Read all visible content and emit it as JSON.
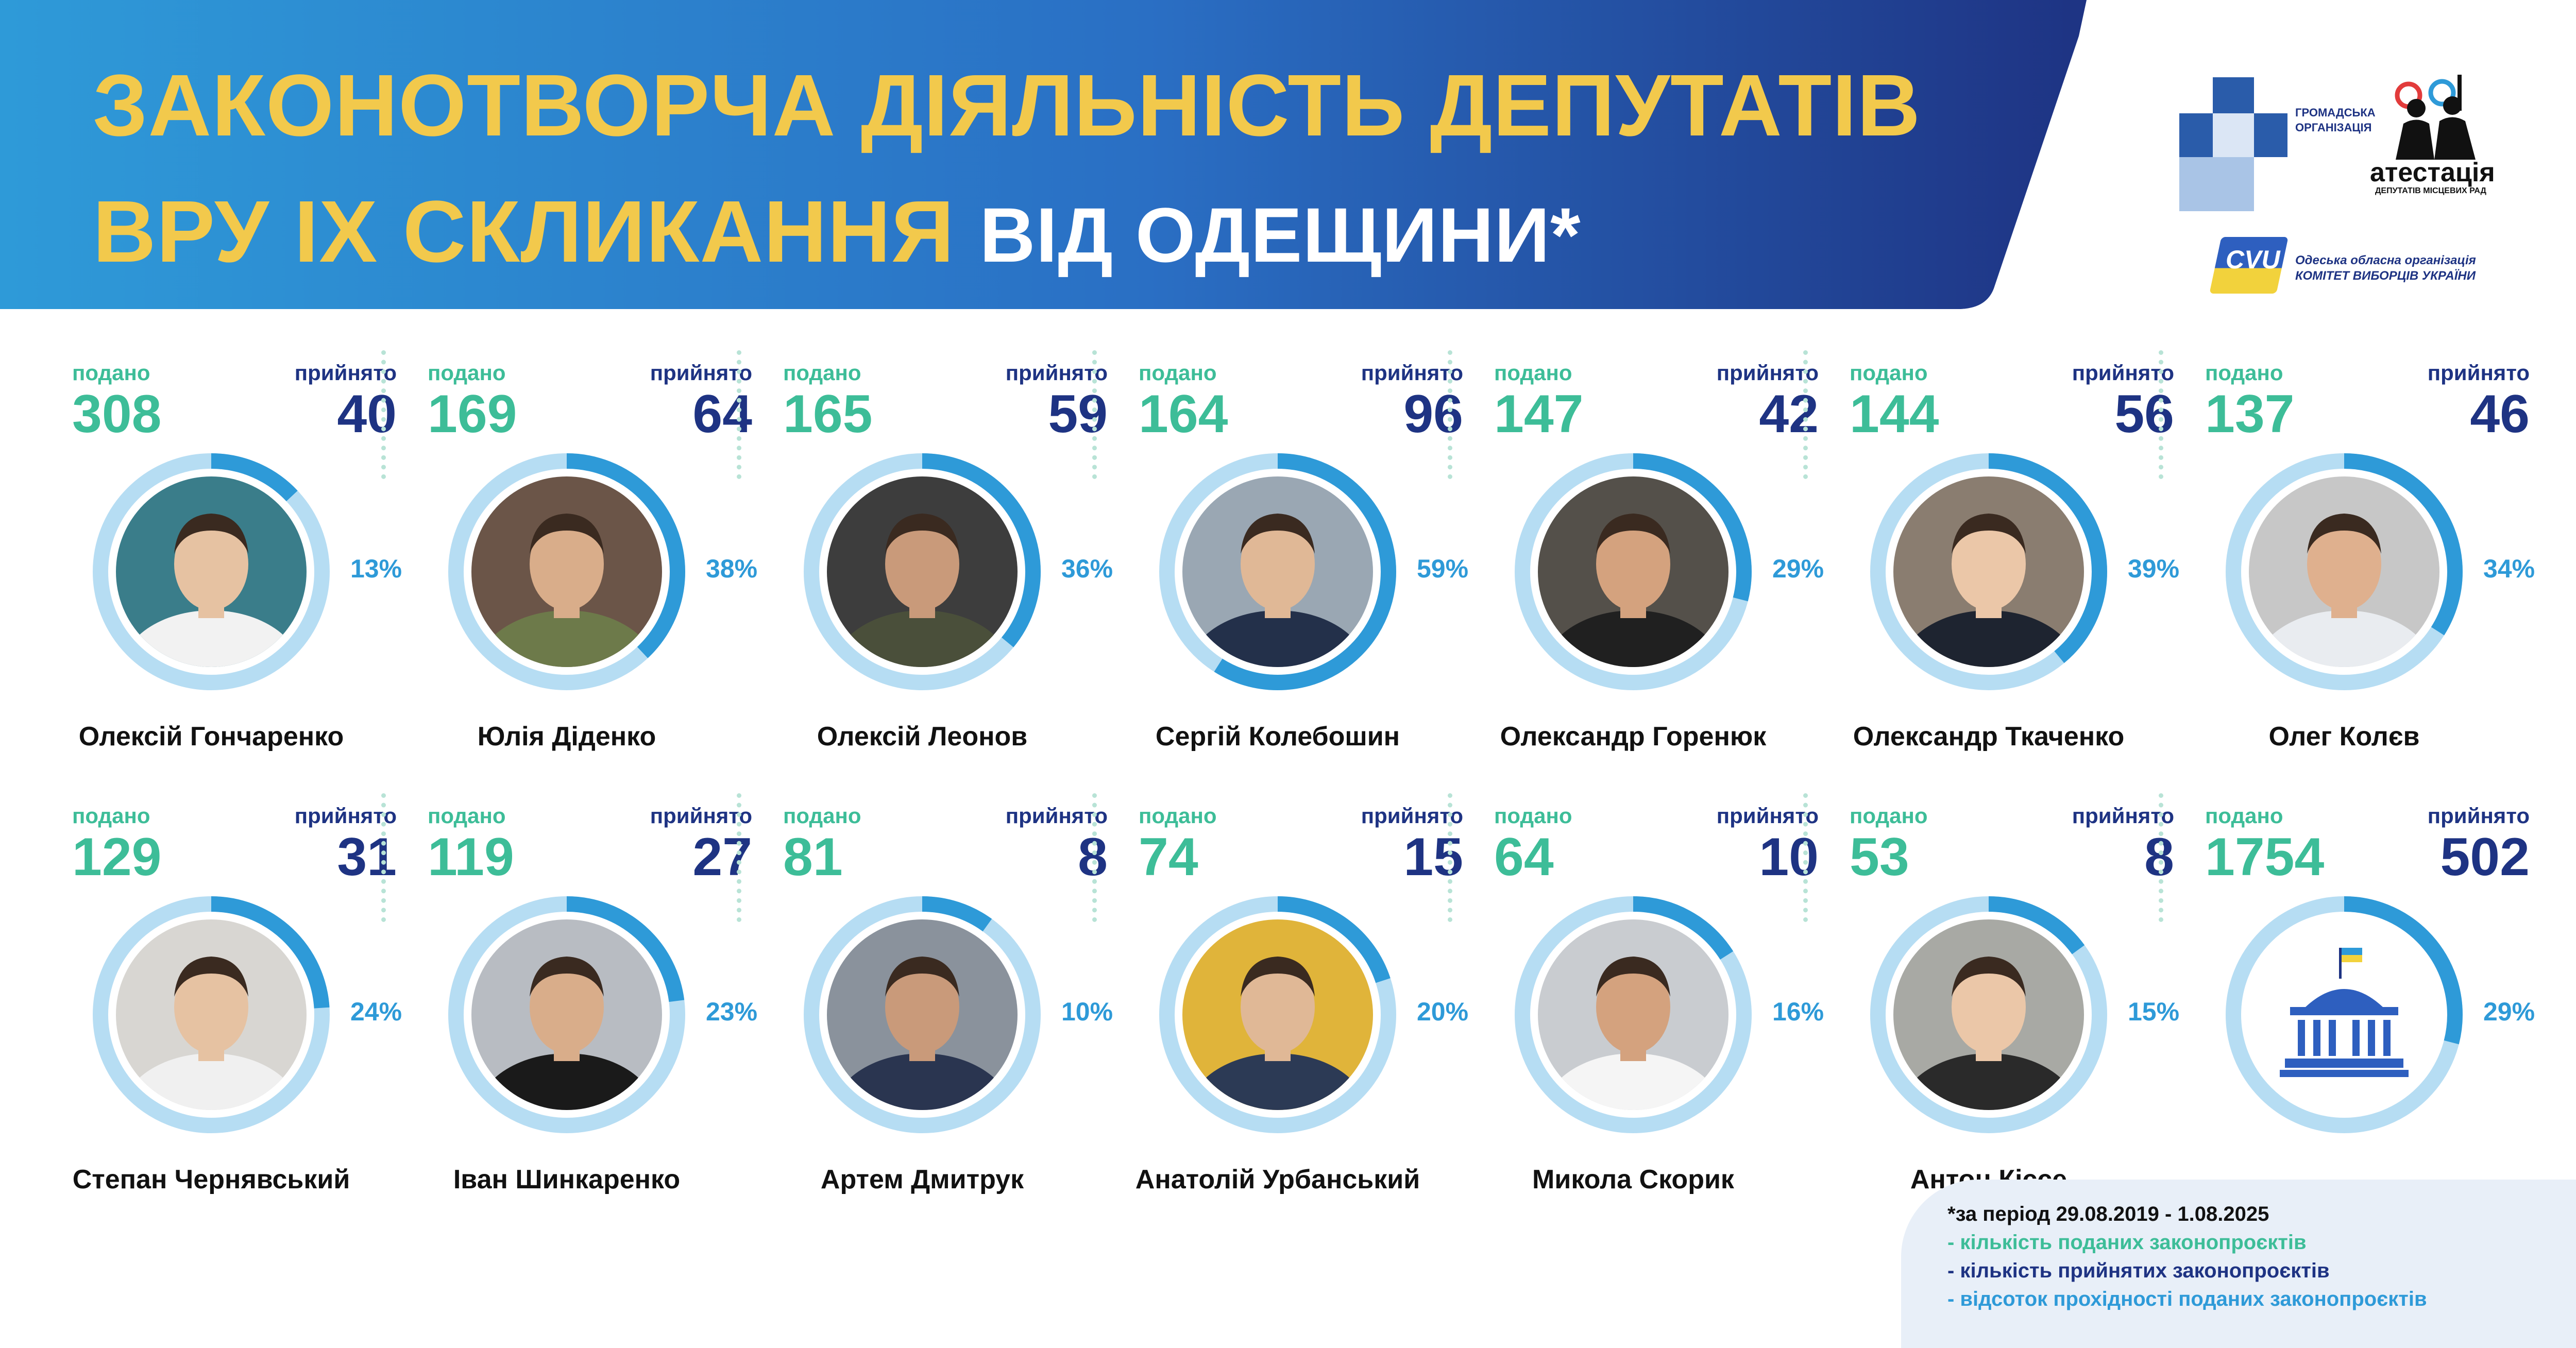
{
  "header": {
    "title_line1": "ЗАКОНОТВОРЧА ДІЯЛЬНІСТЬ ДЕПУТАТІВ",
    "title_line2_bold": "ВРУ IX СКЛИКАННЯ",
    "title_line2_rest": "ВІД ОДЕЩИНИ*"
  },
  "logos": {
    "gromadska": "ГРОМАДСЬКА ОРГАНІЗАЦІЯ",
    "atestatsia": "атестація",
    "atestatsia_sub": "ДЕПУТАТІВ МІСЦЕВИХ РАД",
    "cvu_abbr": "CVU",
    "cvu_line1": "Одеська обласна організація",
    "cvu_line2": "КОМІТЕТ ВИБОРЦІВ УКРАЇНИ"
  },
  "labels": {
    "submitted": "подано",
    "accepted": "прийнято"
  },
  "deputies": [
    {
      "name": "Олексій Гончаренко",
      "submitted": "308",
      "accepted": "40",
      "percent_label": "13%",
      "percent": 13
    },
    {
      "name": "Юлія Діденко",
      "submitted": "169",
      "accepted": "64",
      "percent_label": "38%",
      "percent": 38
    },
    {
      "name": "Олексій Леонов",
      "submitted": "165",
      "accepted": "59",
      "percent_label": "36%",
      "percent": 36
    },
    {
      "name": "Сергій Колебошин",
      "submitted": "164",
      "accepted": "96",
      "percent_label": "59%",
      "percent": 59
    },
    {
      "name": "Олександр Горенюк",
      "submitted": "147",
      "accepted": "42",
      "percent_label": "29%",
      "percent": 29
    },
    {
      "name": "Олександр Ткаченко",
      "submitted": "144",
      "accepted": "56",
      "percent_label": "39%",
      "percent": 39
    },
    {
      "name": "Олег Колєв",
      "submitted": "137",
      "accepted": "46",
      "percent_label": "34%",
      "percent": 34
    },
    {
      "name": "Степан Чернявський",
      "submitted": "129",
      "accepted": "31",
      "percent_label": "24%",
      "percent": 24
    },
    {
      "name": "Іван Шинкаренко",
      "submitted": "119",
      "accepted": "27",
      "percent_label": "23%",
      "percent": 23
    },
    {
      "name": "Артем Дмитрук",
      "submitted": "81",
      "accepted": "8",
      "percent_label": "10%",
      "percent": 10
    },
    {
      "name": "Анатолій Урбанський",
      "submitted": "74",
      "accepted": "15",
      "percent_label": "20%",
      "percent": 20
    },
    {
      "name": "Микола Скорик",
      "submitted": "64",
      "accepted": "10",
      "percent_label": "16%",
      "percent": 16
    },
    {
      "name": "Антон Кіссе",
      "submitted": "53",
      "accepted": "8",
      "percent_label": "15%",
      "percent": 15
    },
    {
      "name": "",
      "submitted": "1754",
      "accepted": "502",
      "percent_label": "29%",
      "percent": 29,
      "icon": "parliament-building-icon"
    }
  ],
  "legend": {
    "period": "*за період 29.08.2019 - 1.08.2025",
    "submitted": "-  кількість поданих законопроєктів",
    "accepted": "-  кількість прийнятих законопроєктів",
    "percent": "- відсоток прохідності поданих законопроєктів"
  },
  "colors": {
    "banner_left": "#2e9ad8",
    "banner_right": "#1e3383",
    "title_yellow": "#f2c94c",
    "submitted": "#3dbd98",
    "accepted": "#1e3383",
    "percent": "#2e9ad8",
    "ring_track": "#b6ddf3"
  }
}
